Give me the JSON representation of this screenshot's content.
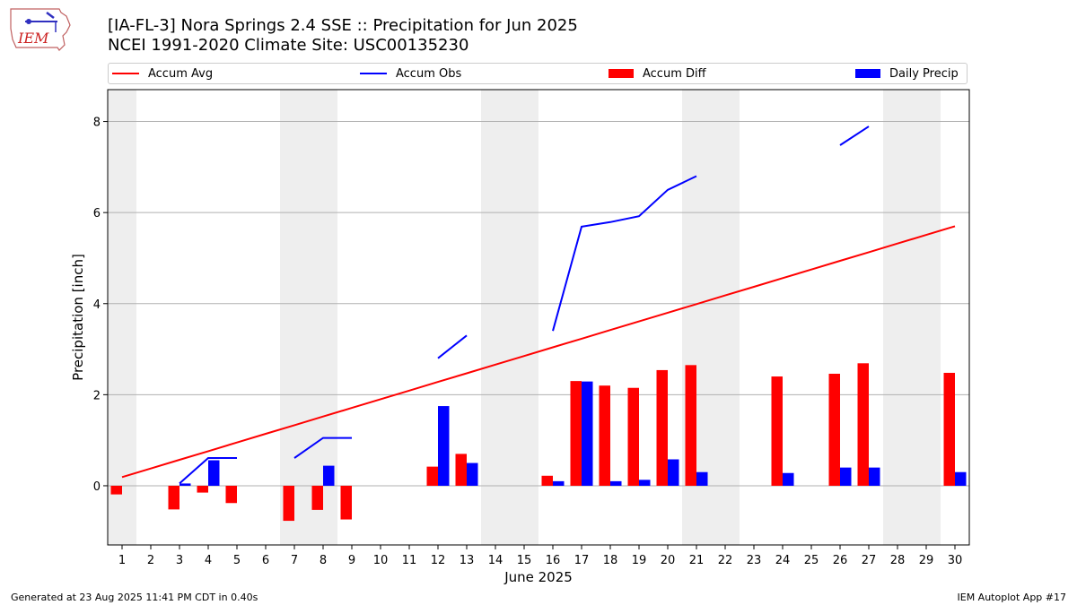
{
  "header": {
    "title_line1": "[IA-FL-3] Nora Springs 2.4 SSE :: Precipitation for Jun 2025",
    "title_line2": "NCEI 1991-2020 Climate Site: USC00135230"
  },
  "logo": {
    "text": "IEM"
  },
  "legend": [
    {
      "label": "Accum Avg",
      "kind": "line",
      "color": "#ff0000"
    },
    {
      "label": "Accum Obs",
      "kind": "line",
      "color": "#0000ff"
    },
    {
      "label": "Accum Diff",
      "kind": "box",
      "color": "#ff0000"
    },
    {
      "label": "Daily Precip",
      "kind": "box",
      "color": "#0000ff"
    }
  ],
  "footer": {
    "left": "Generated at 23 Aug 2025 11:41 PM CDT in 0.40s",
    "right": "IEM Autoplot App #17"
  },
  "chart_data": {
    "type": "bar",
    "xlabel": "June 2025",
    "ylabel": "Precipitation [inch]",
    "x": [
      1,
      2,
      3,
      4,
      5,
      6,
      7,
      8,
      9,
      10,
      11,
      12,
      13,
      14,
      15,
      16,
      17,
      18,
      19,
      20,
      21,
      22,
      23,
      24,
      25,
      26,
      27,
      28,
      29,
      30
    ],
    "xlim": [
      0.5,
      30.5
    ],
    "ylim": [
      -1.3,
      8.7
    ],
    "yticks": [
      0,
      2,
      4,
      6,
      8
    ],
    "grid": "horizontal",
    "legend_placement": "top",
    "weekend_shading": [
      [
        0.5,
        1.5
      ],
      [
        6.5,
        8.5
      ],
      [
        13.5,
        15.5
      ],
      [
        20.5,
        22.5
      ],
      [
        27.5,
        29.5
      ]
    ],
    "series": [
      {
        "name": "Accum Avg",
        "kind": "line",
        "color": "#ff0000",
        "values": [
          0.19,
          0.38,
          0.57,
          0.76,
          0.95,
          1.14,
          1.33,
          1.52,
          1.71,
          1.9,
          2.09,
          2.28,
          2.47,
          2.66,
          2.85,
          3.04,
          3.23,
          3.42,
          3.61,
          3.8,
          3.99,
          4.18,
          4.37,
          4.56,
          4.75,
          4.94,
          5.13,
          5.32,
          5.51,
          5.7
        ]
      },
      {
        "name": "Accum Obs",
        "kind": "line",
        "color": "#0000ff",
        "values": [
          null,
          null,
          0.05,
          0.61,
          0.61,
          null,
          0.61,
          1.05,
          1.05,
          null,
          null,
          2.8,
          3.3,
          null,
          null,
          3.4,
          5.69,
          5.79,
          5.92,
          6.5,
          6.8,
          null,
          null,
          null,
          null,
          7.48,
          7.89,
          null,
          null,
          null
        ]
      },
      {
        "name": "Accum Diff",
        "kind": "bar",
        "color": "#ff0000",
        "values": [
          -0.19,
          0,
          -0.52,
          -0.15,
          -0.38,
          0,
          -0.77,
          -0.53,
          -0.74,
          0,
          0,
          0.42,
          0.7,
          0,
          0,
          0.22,
          2.3,
          2.2,
          2.15,
          2.54,
          2.65,
          0,
          0,
          2.4,
          0,
          2.46,
          2.69,
          0,
          0,
          2.48
        ]
      },
      {
        "name": "Daily Precip",
        "kind": "bar",
        "color": "#0000ff",
        "values": [
          0,
          0,
          0.05,
          0.56,
          0,
          0,
          0,
          0.44,
          0,
          0,
          0,
          1.75,
          0.5,
          0,
          0,
          0.1,
          2.29,
          0.1,
          0.13,
          0.58,
          0.3,
          0,
          0,
          0.28,
          0,
          0.4,
          0.4,
          0,
          0,
          0.3
        ]
      }
    ]
  }
}
